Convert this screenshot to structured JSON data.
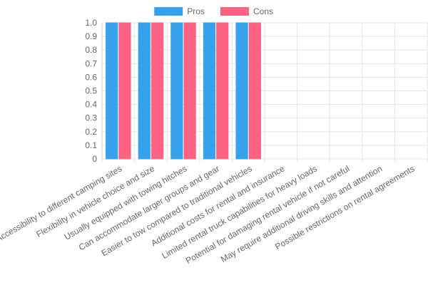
{
  "chart_data": {
    "type": "bar",
    "title": "",
    "xlabel": "",
    "ylabel": "",
    "categories": [
      "Accessibility to different camping sites",
      "Flexibility in vehicle choice and size",
      "Usually equipped with towing hitches",
      "Can accommodate larger groups and gear",
      "Easier to tow compared to traditional vehicles",
      "Additional costs for rental and insurance",
      "Limited rental truck capabilities for heavy loads",
      "Potential for damaging rental vehicle if not careful",
      "May require additional driving skills and attention",
      "Possible restrictions on rental agreements"
    ],
    "series": [
      {
        "name": "Pros",
        "color": "#36a2eb",
        "values": [
          1,
          1,
          1,
          1,
          1,
          0,
          0,
          0,
          0,
          0
        ]
      },
      {
        "name": "Cons",
        "color": "#ff6384",
        "values": [
          1,
          1,
          1,
          1,
          1,
          0,
          0,
          0,
          0,
          0
        ]
      }
    ],
    "ylim": [
      0,
      1
    ],
    "yticks": [
      "0",
      "0.1",
      "0.2",
      "0.3",
      "0.4",
      "0.5",
      "0.6",
      "0.7",
      "0.8",
      "0.9",
      "1.0"
    ],
    "grid": true,
    "legend_position": "top"
  }
}
